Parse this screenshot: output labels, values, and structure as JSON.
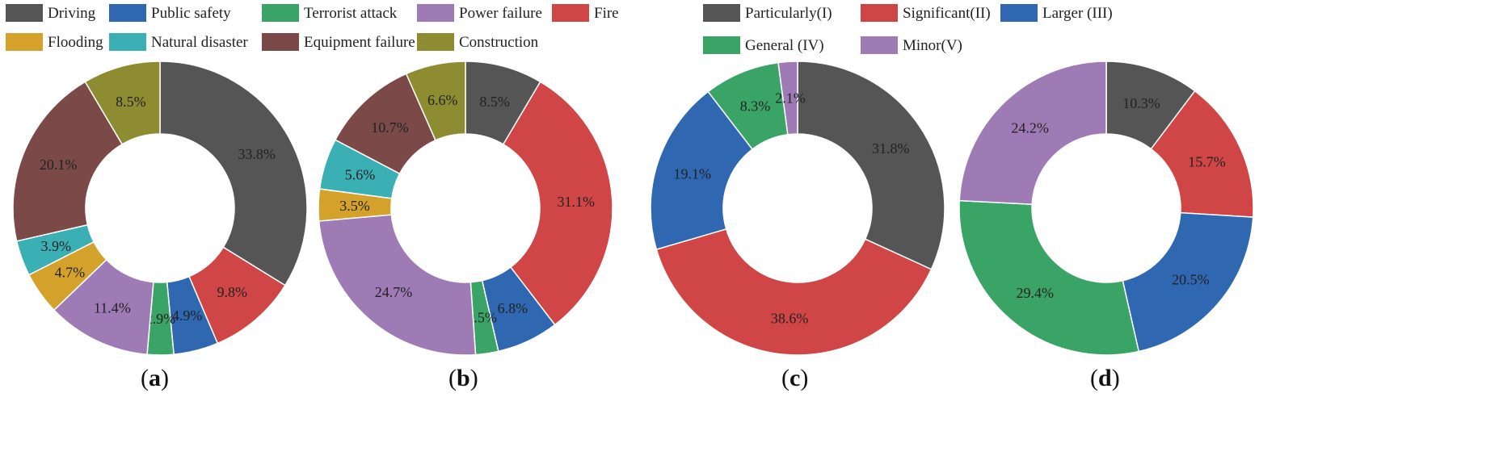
{
  "legends": {
    "categories": [
      {
        "label": "Driving",
        "color": "#555555"
      },
      {
        "label": "Public safety",
        "color": "#2f67b1"
      },
      {
        "label": "Terrorist attack",
        "color": "#3aa467"
      },
      {
        "label": "Power failure",
        "color": "#9e7bb5"
      },
      {
        "label": "Fire",
        "color": "#d04545"
      },
      {
        "label": "Flooding",
        "color": "#d4a22b"
      },
      {
        "label": "Natural disaster",
        "color": "#3ab0b5"
      },
      {
        "label": "Equipment failure",
        "color": "#7b4a48"
      },
      {
        "label": "Construction",
        "color": "#8d8c30"
      }
    ],
    "levels": [
      {
        "label": "Particularly(I)",
        "color": "#555555"
      },
      {
        "label": "Significant(II)",
        "color": "#d04545"
      },
      {
        "label": "Larger (III)",
        "color": "#2f67b1"
      },
      {
        "label": "General (IV)",
        "color": "#3aa467"
      },
      {
        "label": "Minor(V)",
        "color": "#9e7bb5"
      }
    ]
  },
  "chart_data": [
    {
      "type": "pie",
      "panel_label": "a",
      "legend": "categories",
      "slices": [
        {
          "category": "Driving",
          "value": 33.8,
          "label": "33.8%"
        },
        {
          "category": "Fire",
          "value": 9.8,
          "label": "9.8%"
        },
        {
          "category": "Public safety",
          "value": 4.9,
          "label": "4.9%"
        },
        {
          "category": "Terrorist attack",
          "value": 2.9,
          "label": "2.9%"
        },
        {
          "category": "Power failure",
          "value": 11.4,
          "label": "11.4%"
        },
        {
          "category": "Flooding",
          "value": 4.7,
          "label": "4.7%"
        },
        {
          "category": "Natural disaster",
          "value": 3.9,
          "label": "3.9%"
        },
        {
          "category": "Equipment failure",
          "value": 20.1,
          "label": "20.1%"
        },
        {
          "category": "Construction",
          "value": 8.5,
          "label": "8.5%"
        }
      ]
    },
    {
      "type": "pie",
      "panel_label": "b",
      "legend": "categories",
      "slices": [
        {
          "category": "Driving",
          "value": 8.5,
          "label": "8.5%"
        },
        {
          "category": "Fire",
          "value": 31.1,
          "label": "31.1%"
        },
        {
          "category": "Public safety",
          "value": 6.8,
          "label": "6.8%"
        },
        {
          "category": "Terrorist attack",
          "value": 2.5,
          "label": "2.5%"
        },
        {
          "category": "Power failure",
          "value": 24.7,
          "label": "24.7%"
        },
        {
          "category": "Flooding",
          "value": 3.5,
          "label": "3.5%"
        },
        {
          "category": "Natural disaster",
          "value": 5.6,
          "label": "5.6%"
        },
        {
          "category": "Equipment failure",
          "value": 10.7,
          "label": "10.7%"
        },
        {
          "category": "Construction",
          "value": 6.6,
          "label": "6.6%"
        }
      ]
    },
    {
      "type": "pie",
      "panel_label": "c",
      "legend": "levels",
      "slices": [
        {
          "category": "Particularly(I)",
          "value": 31.8,
          "label": "31.8%"
        },
        {
          "category": "Significant(II)",
          "value": 38.6,
          "label": "38.6%"
        },
        {
          "category": "Larger (III)",
          "value": 19.1,
          "label": "19.1%"
        },
        {
          "category": "General (IV)",
          "value": 8.3,
          "label": "8.3%"
        },
        {
          "category": "Minor(V)",
          "value": 2.1,
          "label": "2.1%"
        }
      ]
    },
    {
      "type": "pie",
      "panel_label": "d",
      "legend": "levels",
      "slices": [
        {
          "category": "Particularly(I)",
          "value": 10.3,
          "label": "10.3%"
        },
        {
          "category": "Significant(II)",
          "value": 15.7,
          "label": "15.7%"
        },
        {
          "category": "Larger (III)",
          "value": 20.5,
          "label": "20.5%"
        },
        {
          "category": "General (IV)",
          "value": 29.4,
          "label": "29.4%"
        },
        {
          "category": "Minor(V)",
          "value": 24.2,
          "label": "24.2%"
        }
      ]
    }
  ]
}
